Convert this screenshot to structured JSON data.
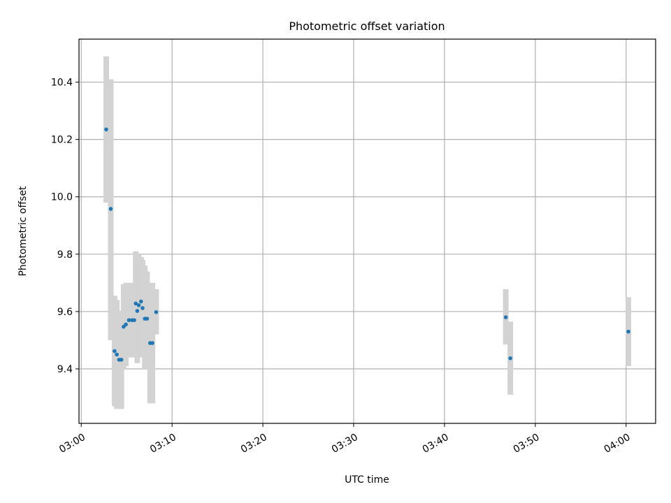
{
  "chart_data": {
    "type": "scatter",
    "title": "Photometric offset variation",
    "xlabel": "UTC time",
    "ylabel": "Photometric offset",
    "xlim": [
      "02:59:45",
      "04:03:15"
    ],
    "ylim": [
      9.21,
      10.55
    ],
    "grid": true,
    "x_ticks": [
      "03:00",
      "03:10",
      "03:20",
      "03:30",
      "03:40",
      "03:50",
      "04:00"
    ],
    "y_ticks": [
      "9.4",
      "9.6",
      "9.8",
      "10.0",
      "10.2",
      "10.4"
    ],
    "colors": {
      "points": "#1f77b4",
      "errorbars": "#d3d3d3",
      "grid": "#b0b0b0"
    },
    "points": [
      {
        "x": "03:02:45",
        "y": 10.235,
        "err_low": 9.98,
        "err_high": 10.49
      },
      {
        "x": "03:03:15",
        "y": 9.958,
        "err_low": 9.5,
        "err_high": 10.41
      },
      {
        "x": "03:03:40",
        "y": 9.462,
        "err_low": 9.27,
        "err_high": 9.655
      },
      {
        "x": "03:03:55",
        "y": 9.45,
        "err_low": 9.26,
        "err_high": 9.64
      },
      {
        "x": "03:04:10",
        "y": 9.432,
        "err_low": 9.26,
        "err_high": 9.6
      },
      {
        "x": "03:04:25",
        "y": 9.432,
        "err_low": 9.26,
        "err_high": 9.6
      },
      {
        "x": "03:04:40",
        "y": 9.547,
        "err_low": 9.4,
        "err_high": 9.695
      },
      {
        "x": "03:04:55",
        "y": 9.555,
        "err_low": 9.41,
        "err_high": 9.7
      },
      {
        "x": "03:05:15",
        "y": 9.57,
        "err_low": 9.44,
        "err_high": 9.7
      },
      {
        "x": "03:05:35",
        "y": 9.57,
        "err_low": 9.44,
        "err_high": 9.7
      },
      {
        "x": "03:05:50",
        "y": 9.57,
        "err_low": 9.44,
        "err_high": 9.7
      },
      {
        "x": "03:06:00",
        "y": 9.628,
        "err_low": 9.45,
        "err_high": 9.81
      },
      {
        "x": "03:06:10",
        "y": 9.602,
        "err_low": 9.42,
        "err_high": 9.79
      },
      {
        "x": "03:06:20",
        "y": 9.622,
        "err_low": 9.44,
        "err_high": 9.8
      },
      {
        "x": "03:06:35",
        "y": 9.635,
        "err_low": 9.46,
        "err_high": 9.79
      },
      {
        "x": "03:06:45",
        "y": 9.612,
        "err_low": 9.44,
        "err_high": 9.78
      },
      {
        "x": "03:07:00",
        "y": 9.575,
        "err_low": 9.4,
        "err_high": 9.76
      },
      {
        "x": "03:07:15",
        "y": 9.575,
        "err_low": 9.4,
        "err_high": 9.74
      },
      {
        "x": "03:07:35",
        "y": 9.49,
        "err_low": 9.28,
        "err_high": 9.7
      },
      {
        "x": "03:07:50",
        "y": 9.49,
        "err_low": 9.28,
        "err_high": 9.7
      },
      {
        "x": "03:08:15",
        "y": 9.598,
        "err_low": 9.52,
        "err_high": 9.678
      },
      {
        "x": "03:46:45",
        "y": 9.58,
        "err_low": 9.485,
        "err_high": 9.678
      },
      {
        "x": "03:47:15",
        "y": 9.437,
        "err_low": 9.31,
        "err_high": 9.565
      },
      {
        "x": "04:00:15",
        "y": 9.53,
        "err_low": 9.41,
        "err_high": 9.65
      }
    ]
  }
}
